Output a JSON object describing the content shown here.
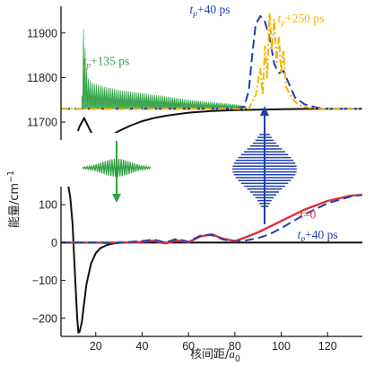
{
  "chart_data": [
    {
      "type": "line",
      "panel": "upper",
      "xlabel_parts": [
        "核间距/",
        "a",
        "0"
      ],
      "ylabel_parts": [
        "能量/cm",
        "−1"
      ],
      "xlim": [
        5,
        135
      ],
      "ylim": [
        11680,
        11960
      ],
      "y_ticks": [
        11700,
        11800,
        11900
      ],
      "y_tick_labels": [
        "11700",
        "11800",
        "11900"
      ],
      "grid": false,
      "series": [
        {
          "key": "ground-potential",
          "color": "#111111",
          "style": "solid",
          "x": [
            12.3,
            13,
            15,
            18,
            20,
            22,
            24,
            26,
            28,
            30,
            35,
            40,
            45,
            50,
            60,
            70,
            80,
            90,
            100,
            110,
            120,
            130,
            135
          ],
          "y": [
            11680,
            11690,
            11709,
            11677,
            11666,
            11662,
            11663,
            11668,
            11674,
            11680,
            11692,
            11702,
            11709,
            11714,
            11721,
            11725,
            11727,
            11728,
            11729,
            11729.5,
            11730,
            11730,
            11730
          ]
        },
        {
          "key": "tp-135",
          "color": "#2ea043",
          "style": "filled-oscillation",
          "x": [
            14,
            14.8,
            15.5,
            16.5,
            18,
            20,
            25,
            30,
            40,
            50,
            60,
            70,
            80,
            85
          ],
          "envelope_top": [
            11760,
            11930,
            11855,
            11800,
            11790,
            11785,
            11778,
            11772,
            11765,
            11758,
            11750,
            11745,
            11740,
            11735
          ],
          "baseline": 11730
        },
        {
          "key": "tp-40",
          "color": "#1f3fae",
          "style": "dashed",
          "x": [
            5,
            80,
            84,
            86,
            87.5,
            89,
            91,
            93,
            95,
            97,
            99,
            101,
            103,
            106,
            110,
            115,
            120,
            130,
            135
          ],
          "y": [
            11730,
            11730,
            11735,
            11770,
            11850,
            11920,
            11938,
            11925,
            11890,
            11830,
            11810,
            11815,
            11790,
            11755,
            11740,
            11733,
            11730,
            11730,
            11730
          ]
        },
        {
          "key": "tp-250",
          "color": "#f5b400",
          "style": "dashdot",
          "x": [
            5,
            86,
            89,
            91,
            92,
            93,
            94,
            95,
            96,
            97,
            98,
            99,
            100,
            101,
            102,
            104,
            106,
            108,
            112,
            120,
            135
          ],
          "y": [
            11730,
            11730,
            11760,
            11820,
            11760,
            11870,
            11800,
            11945,
            11860,
            11930,
            11835,
            11890,
            11810,
            11860,
            11780,
            11760,
            11745,
            11738,
            11732,
            11730,
            11730
          ]
        }
      ],
      "annotations": [
        {
          "key": "tp-135",
          "main": "t",
          "sub": "p",
          "rest": "+135 ps",
          "color": "#2ea043",
          "x": 14.5,
          "y": 11828
        },
        {
          "key": "tp-40",
          "main": "t",
          "sub": "p",
          "rest": "+40 ps",
          "color": "#1f3fae",
          "x": 60.5,
          "y": 11944
        },
        {
          "key": "tp-250",
          "main": "t",
          "sub": "p",
          "rest": "+250 ps",
          "color": "#f5b400",
          "x": 98.5,
          "y": 11924
        }
      ]
    },
    {
      "type": "line",
      "panel": "lower",
      "xlim": [
        5,
        135
      ],
      "ylim": [
        -248,
        148
      ],
      "x_ticks": [
        20,
        40,
        60,
        80,
        100,
        120
      ],
      "x_tick_labels": [
        "20",
        "40",
        "60",
        "80",
        "100",
        "120"
      ],
      "y_ticks": [
        -200,
        -100,
        0,
        100
      ],
      "y_tick_labels": [
        "−200",
        "−100",
        "0",
        "100"
      ],
      "grid": false,
      "series": [
        {
          "key": "ground-potential",
          "color": "#111111",
          "style": "solid",
          "x": [
            8.2,
            9,
            10,
            11,
            12,
            12.5,
            13,
            14,
            15,
            16,
            18,
            20,
            22,
            25,
            28,
            30,
            35,
            40,
            50,
            135
          ],
          "y": [
            148,
            120,
            50,
            -80,
            -200,
            -238,
            -236,
            -210,
            -160,
            -110,
            -55,
            -28,
            -15,
            -6,
            -2,
            0,
            0,
            0,
            0,
            0
          ]
        },
        {
          "key": "t0",
          "color": "#e03030",
          "style": "solid",
          "x": [
            5,
            20,
            28,
            35,
            40,
            45,
            50,
            55,
            60,
            65,
            70,
            75,
            80,
            85,
            90,
            95,
            100,
            110,
            120,
            130,
            135
          ],
          "y": [
            0,
            0,
            0,
            0,
            2,
            5,
            -2,
            6,
            1,
            16,
            22,
            10,
            4,
            15,
            27,
            42,
            57,
            87,
            110,
            124,
            126
          ]
        },
        {
          "key": "tp-40",
          "color": "#1f3fae",
          "style": "dashed",
          "x": [
            5,
            20,
            28,
            35,
            40,
            45,
            50,
            55,
            60,
            65,
            70,
            75,
            80,
            85,
            90,
            95,
            100,
            110,
            120,
            130,
            135
          ],
          "y": [
            0,
            0,
            -2,
            2,
            4,
            8,
            0,
            10,
            2,
            18,
            20,
            8,
            2,
            6,
            12,
            22,
            38,
            74,
            104,
            122,
            126
          ]
        }
      ],
      "annotations": [
        {
          "key": "t0",
          "main": "t",
          "sub": "",
          "rest": "=0",
          "color": "#e03030",
          "x": 108,
          "y": 64
        },
        {
          "key": "tp-40",
          "main": "t",
          "sub": "p",
          "rest": "+40 ps",
          "color": "#1f3fae",
          "x": 107,
          "y": 10
        }
      ]
    }
  ],
  "colors": {
    "green": "#2ea043",
    "blue": "#1f3fae",
    "orange": "#f5b400",
    "red": "#e03030",
    "black": "#111111"
  }
}
